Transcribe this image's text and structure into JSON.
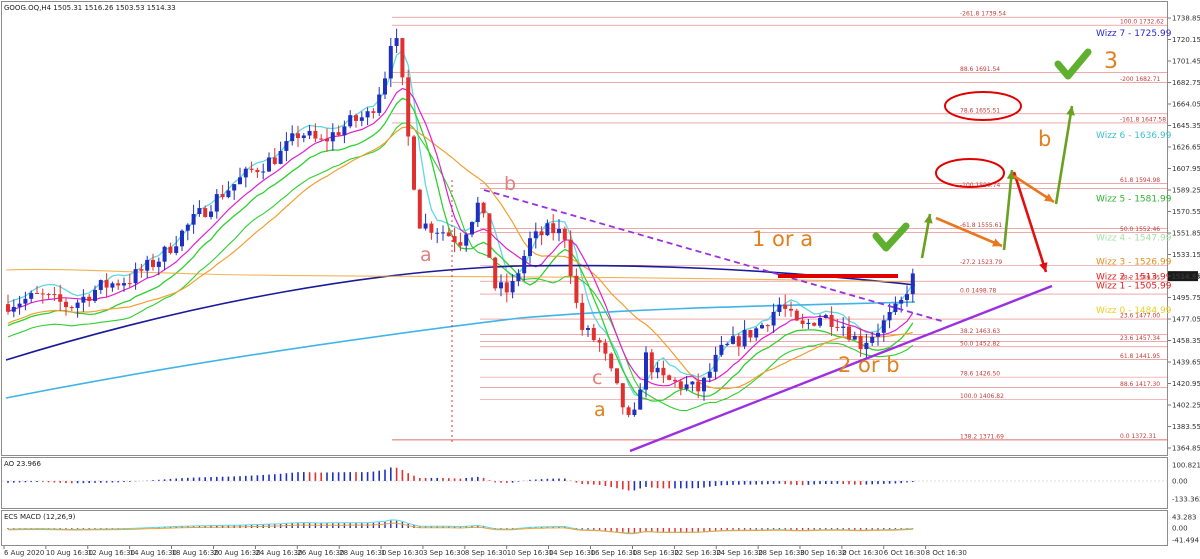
{
  "header": {
    "symbol_line": "GOOG.OQ,H4  1505.31 1516.26 1503.53 1514.33",
    "ao_label": "AO 23.966",
    "macd_label": "ECS MACD (12,26,9)"
  },
  "colors": {
    "bull_candle": "#1f2fbf",
    "bear_candle": "#e03030",
    "ma_cyan": "#5fd8e0",
    "ma_green": "#2ed12e",
    "ma_orange": "#f0a030",
    "ma_navy": "#1a1a9a",
    "ma_sky": "#40b4e8",
    "ma_magenta": "#e020d0",
    "trendline_purple": "#9b30e0",
    "fib_red": "#e06060",
    "resistance_red": "#e00000",
    "arrow_orange": "#e87820",
    "arrow_green": "#6aa020",
    "arrow_red": "#e01010",
    "check_green": "#5fb030",
    "wave_pink": "#e08080",
    "wave_orange": "#e08020"
  },
  "price_axis": {
    "ticks": [
      "1738.85",
      "1720.15",
      "1701.45",
      "1682.75",
      "1664.05",
      "1645.35",
      "1626.65",
      "1607.95",
      "1589.25",
      "1570.55",
      "1551.85",
      "1533.15",
      "1514.45",
      "1495.75",
      "1477.05",
      "1458.35",
      "1439.65",
      "1420.95",
      "1402.25",
      "1383.55",
      "1364.85"
    ],
    "current_price": "1514.33"
  },
  "ao_axis": {
    "ticks": [
      "100.821",
      "0.00",
      "-133.362"
    ]
  },
  "macd_axis": {
    "ticks": [
      "43.283",
      "0.00",
      "-41.494"
    ]
  },
  "time_axis": {
    "labels": [
      "6 Aug 2020",
      "10 Aug 16:30",
      "12 Aug 16:30",
      "14 Aug 16:30",
      "18 Aug 16:30",
      "20 Aug 16:30",
      "24 Aug 16:30",
      "26 Aug 16:30",
      "28 Aug 16:30",
      "1 Sep 16:30",
      "3 Sep 16:30",
      "8 Sep 16:30",
      "10 Sep 16:30",
      "14 Sep 16:30",
      "16 Sep 16:30",
      "18 Sep 16:30",
      "22 Sep 16:30",
      "24 Sep 16:30",
      "28 Sep 16:30",
      "30 Sep 16:30",
      "2 Oct 16:30",
      "6 Oct 16:30",
      "8 Oct 16:30"
    ]
  },
  "fib_levels": [
    {
      "label": "-261.8 1739.54",
      "price": 1739.54
    },
    {
      "label": "100.0 1732.62",
      "price": 1732.62
    },
    {
      "label": "88.6 1691.54",
      "price": 1691.54
    },
    {
      "label": "-200 1682.71",
      "price": 1682.71
    },
    {
      "label": "78.6 1655.51",
      "price": 1655.51
    },
    {
      "label": "-161.8 1647.58",
      "price": 1647.58
    },
    {
      "label": "-100 1590.74",
      "price": 1590.74
    },
    {
      "label": "61.8 1594.98",
      "price": 1594.98
    },
    {
      "label": "-61.8 1555.61",
      "price": 1555.61
    },
    {
      "label": "50.0 1552.46",
      "price": 1552.46
    },
    {
      "label": "-27.2 1523.79",
      "price": 1523.79
    },
    {
      "label": "38.2 1509.95",
      "price": 1509.95
    },
    {
      "label": "0.0 1498.78",
      "price": 1498.78
    },
    {
      "label": "23.6 1477.00",
      "price": 1477.0
    },
    {
      "label": "38.2 1463.63",
      "price": 1463.63
    },
    {
      "label": "23.6 1457.34",
      "price": 1457.34
    },
    {
      "label": "50.0 1452.82",
      "price": 1452.82
    },
    {
      "label": "61.8 1441.95",
      "price": 1441.95
    },
    {
      "label": "78.6 1426.50",
      "price": 1426.5
    },
    {
      "label": "88.6 1417.30",
      "price": 1417.3
    },
    {
      "label": "100.0 1406.82",
      "price": 1406.82
    },
    {
      "label": "0.0 1372.31",
      "price": 1372.31
    },
    {
      "label": "138.2 1371.69",
      "price": 1371.69
    }
  ],
  "wizz_labels": [
    {
      "label": "Wizz 7 - 1725.99",
      "price": 1725.99,
      "color": "#2a2ad0"
    },
    {
      "label": "Wizz 6 - 1636.99",
      "price": 1636.99,
      "color": "#40c0d0"
    },
    {
      "label": "Wizz 5 - 1581.99",
      "price": 1581.99,
      "color": "#30b030"
    },
    {
      "label": "Wizz 4 - 1547.99",
      "price": 1547.99,
      "color": "#a8e0a8"
    },
    {
      "label": "Wizz 3 - 1526.99",
      "price": 1526.99,
      "color": "#e09020"
    },
    {
      "label": "Wizz 2 - 1513.99",
      "price": 1513.99,
      "color": "#e02020"
    },
    {
      "label": "Wizz 1 - 1505.99",
      "price": 1505.99,
      "color": "#e02020"
    },
    {
      "label": "Wizz 0 - 1484.99",
      "price": 1484.99,
      "color": "#e8d020"
    }
  ],
  "annotations": {
    "wave_b_pink": "b",
    "wave_a_pink": "a",
    "wave_c_pink": "c",
    "wave_a_orange": "a",
    "one_or_a": "1 or a",
    "two_or_b": "2 or b",
    "wave_b_orange": "b",
    "wave_3": "3"
  },
  "chart_data": {
    "type": "candlestick",
    "title": "GOOG.OQ,H4",
    "series": [
      {
        "name": "GOOG.OQ",
        "note": "4-hour candles, 6 Aug 2020 to 8 Oct 2020"
      }
    ],
    "ohlc_last": {
      "open": 1505.31,
      "high": 1516.26,
      "low": 1503.53,
      "close": 1514.33
    },
    "ylim": [
      1364.85,
      1738.85
    ],
    "oscillators": {
      "ao": {
        "last": 23.966,
        "ylim": [
          -133.362,
          100.821
        ]
      },
      "macd": {
        "params": "12,26,9",
        "ylim": [
          -41.494,
          43.283
        ]
      }
    }
  }
}
